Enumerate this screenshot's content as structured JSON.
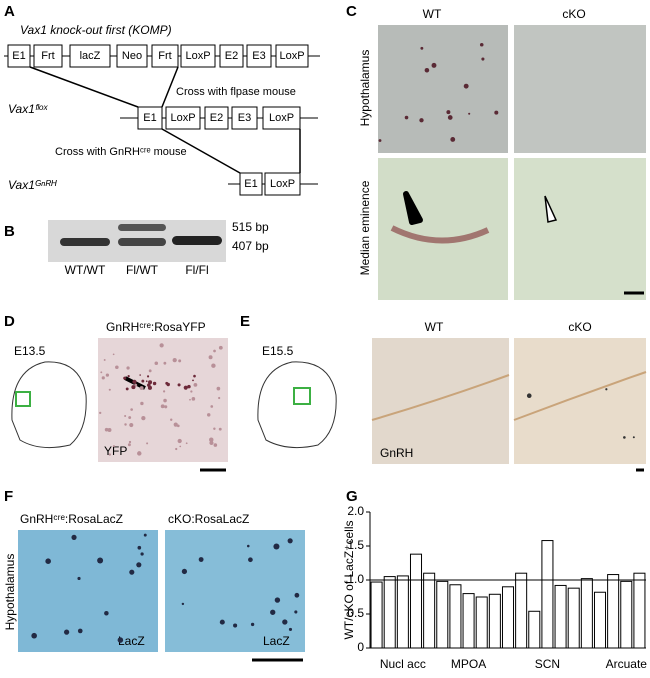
{
  "figure": {
    "A": {
      "letter": "A",
      "title": "Vax1 knock-out first (KOMP)",
      "row1": [
        "E1",
        "Frt",
        "lacZ",
        "Neo",
        "Frt",
        "LoxP",
        "E2",
        "E3",
        "LoxP"
      ],
      "cross1": "Cross with flpase mouse",
      "allele2": "Vax1ᶠˡᵒˣ",
      "row2": [
        "E1",
        "LoxP",
        "E2",
        "E3",
        "LoxP"
      ],
      "cross2": "Cross with GnRHᶜʳᵉ mouse",
      "allele3": "Vax1ᴳⁿᴿᴴ",
      "row3": [
        "E1",
        "LoxP"
      ]
    },
    "B": {
      "letter": "B",
      "sizes": [
        "515 bp",
        "407 bp"
      ],
      "lanes": [
        "WT/WT",
        "Fl/WT",
        "Fl/Fl"
      ]
    },
    "C": {
      "letter": "C",
      "columns": [
        "WT",
        "cKO"
      ],
      "rows": [
        "Hypothalamus",
        "Median eminence"
      ]
    },
    "D": {
      "letter": "D",
      "stage": "E13.5",
      "title": "GnRHᶜʳᵉ:RosaYFP",
      "stain": "YFP"
    },
    "E": {
      "letter": "E",
      "stage": "E15.5",
      "columns": [
        "WT",
        "cKO"
      ],
      "stain": "GnRH"
    },
    "F": {
      "letter": "F",
      "columns": [
        "GnRHᶜʳᵉ:RosaLacZ",
        "cKO:RosaLacZ"
      ],
      "region": "Hypothalamus",
      "stain": [
        "LacZ",
        "LacZ"
      ]
    },
    "G": {
      "letter": "G"
    }
  },
  "chart_data": {
    "type": "bar",
    "y_label": "WT/cKO of LacZ⁺cells",
    "categories": [
      null,
      null,
      "Nucl acc",
      null,
      null,
      null,
      null,
      "MPOA",
      null,
      null,
      null,
      null,
      null,
      "SCN",
      null,
      null,
      null,
      null,
      null,
      "Arcuate",
      null
    ],
    "values": [
      0.97,
      1.05,
      1.06,
      1.38,
      1.1,
      0.98,
      0.93,
      0.8,
      0.75,
      0.79,
      0.9,
      1.1,
      0.54,
      1.58,
      0.92,
      0.88,
      1.02,
      0.82,
      1.08,
      0.98,
      1.1
    ],
    "color": "#ffffff",
    "edge_color": "#000000",
    "reference_line": 1,
    "ylim": [
      0,
      2
    ],
    "yticks": [
      0,
      0.5,
      {
        "value": 1,
        "label": "1.0"
      },
      1.5,
      {
        "value": 2,
        "label": "2.0"
      }
    ]
  }
}
